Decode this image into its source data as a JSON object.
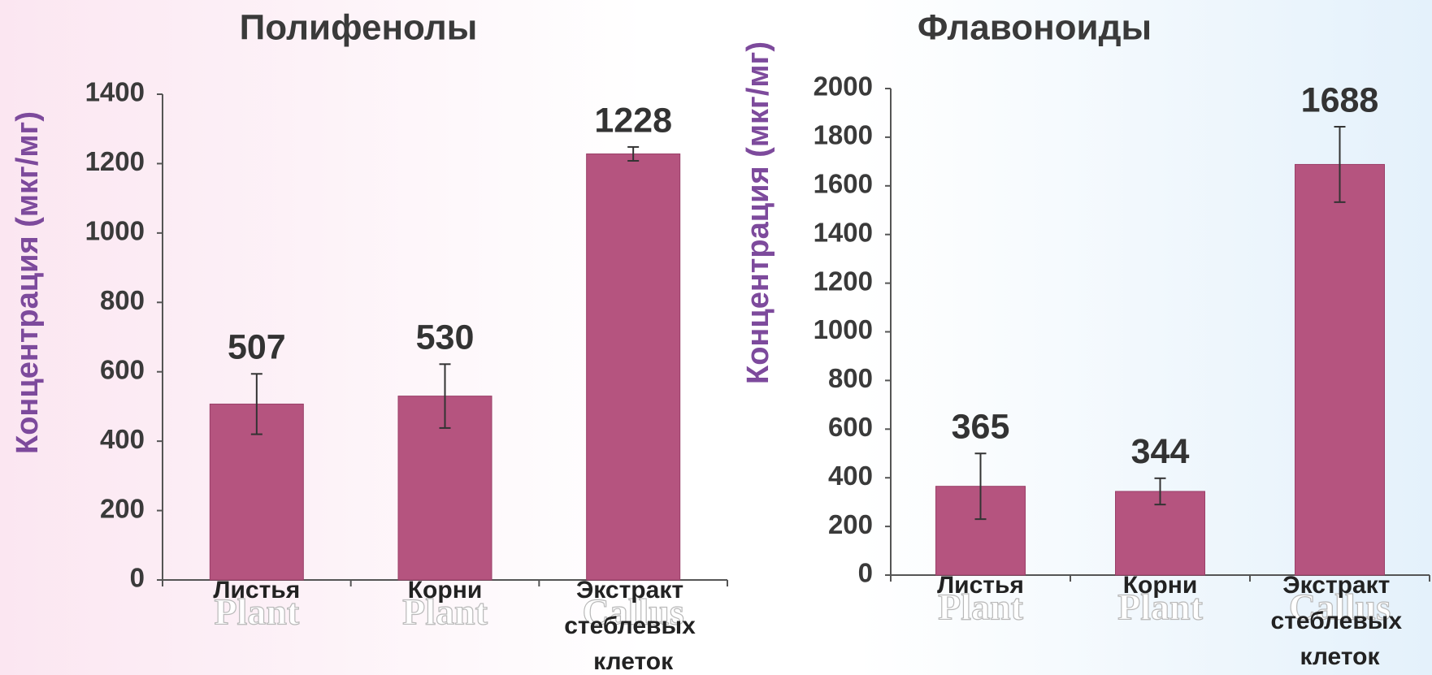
{
  "chart_data": [
    {
      "type": "bar",
      "title": "Полифенолы",
      "ylabel": "Концентрация (мкг/мг)",
      "categories": [
        "Листья",
        "Корни",
        "Экстракт стеблевых клеток"
      ],
      "ghost_labels": [
        "Plant",
        "Plant",
        "Callus"
      ],
      "values": [
        507,
        530,
        1228
      ],
      "errors": [
        87,
        92,
        20
      ],
      "color": "#b5547f",
      "ylim": [
        0,
        1400
      ],
      "yticks": [
        0,
        200,
        400,
        600,
        800,
        1000,
        1200,
        1400
      ]
    },
    {
      "type": "bar",
      "title": "Флавоноиды",
      "ylabel": "Концентрация (мкг/мг)",
      "categories": [
        "Листья",
        "Корни",
        "Экстракт стеблевых клеток"
      ],
      "ghost_labels": [
        "Plant",
        "Plant",
        "Callus"
      ],
      "values": [
        365,
        344,
        1688
      ],
      "errors": [
        135,
        54,
        155
      ],
      "color": "#b5547f",
      "ylim": [
        0,
        2000
      ],
      "yticks": [
        0,
        200,
        400,
        600,
        800,
        1000,
        1200,
        1400,
        1600,
        1800,
        2000
      ]
    }
  ]
}
